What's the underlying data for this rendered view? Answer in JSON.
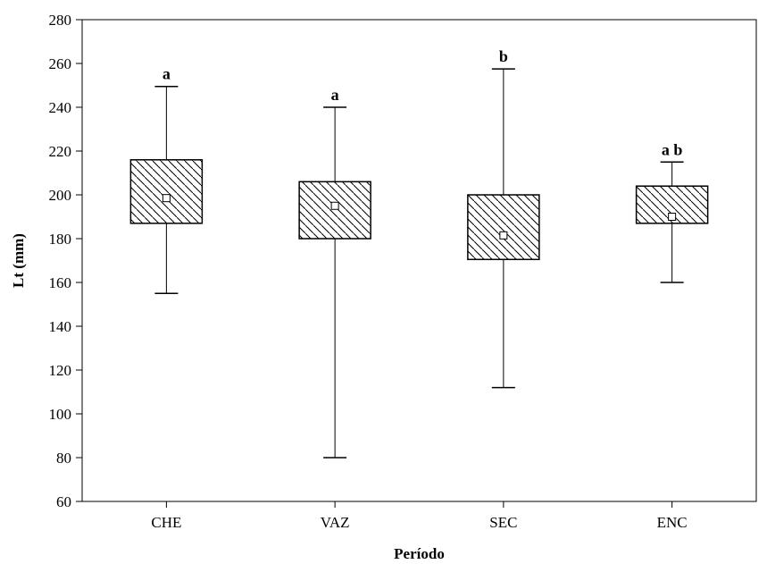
{
  "chart_data": {
    "type": "boxplot",
    "xlabel": "Período",
    "ylabel": "Lt (mm)",
    "ylim": [
      60,
      280
    ],
    "yticks": [
      60,
      80,
      100,
      120,
      140,
      160,
      180,
      200,
      220,
      240,
      260,
      280
    ],
    "categories": [
      "CHE",
      "VAZ",
      "SEC",
      "ENC"
    ],
    "boxes": [
      {
        "category": "CHE",
        "min": 155,
        "q1": 187,
        "median": 198.5,
        "q3": 216,
        "max": 249.5,
        "significance": "a"
      },
      {
        "category": "VAZ",
        "min": 80,
        "q1": 180,
        "median": 195,
        "q3": 206,
        "max": 240,
        "significance": "a"
      },
      {
        "category": "SEC",
        "min": 112,
        "q1": 170.5,
        "median": 181.5,
        "q3": 200,
        "max": 257.5,
        "significance": "b"
      },
      {
        "category": "ENC",
        "min": 160,
        "q1": 187,
        "median": 190,
        "q3": 204,
        "max": 215,
        "significance": "ab"
      }
    ],
    "box_fill": "hatched",
    "grid": false,
    "colors": {
      "stroke": "#000000",
      "background": "#ffffff"
    }
  }
}
